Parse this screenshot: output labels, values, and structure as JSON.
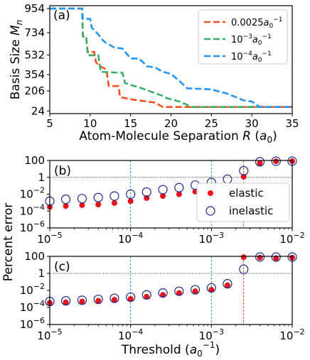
{
  "chart_data": [
    {
      "panel": "(a)",
      "type": "line",
      "xlabel_html": "Atom-Molecule Separation R (a0)",
      "xlabel": {
        "prefix": "Atom-Molecule Separation ",
        "var": "R",
        "unit_open": " (",
        "unit": "a",
        "unit_sub": "0",
        "unit_close": ")"
      },
      "ylabel": {
        "prefix": "Basis Size ",
        "var": "M",
        "sub": "n"
      },
      "xlim": [
        5,
        35
      ],
      "xticks": [
        5,
        10,
        15,
        20,
        25,
        30,
        35
      ],
      "yticks": [
        24,
        206,
        354,
        532,
        734,
        954
      ],
      "ylim": [
        0,
        980
      ],
      "legend_position": "top-right",
      "series": [
        {
          "name": "0.0025a0^-1",
          "label": {
            "main": "0.0025",
            "a": "a",
            "sub": "0",
            "sup": "−1"
          },
          "color": "#f4511e",
          "points": [
            [
              5,
              954
            ],
            [
              9,
              954
            ],
            [
              9.1,
              700
            ],
            [
              9.5,
              700
            ],
            [
              9.7,
              560
            ],
            [
              10.5,
              560
            ],
            [
              10.7,
              470
            ],
            [
              11,
              440
            ],
            [
              11.5,
              420
            ],
            [
              12,
              400
            ],
            [
              12.3,
              250
            ],
            [
              13.5,
              250
            ],
            [
              13.7,
              150
            ],
            [
              15,
              130
            ],
            [
              16,
              120
            ],
            [
              17,
              110
            ],
            [
              18,
              100
            ],
            [
              18.5,
              80
            ],
            [
              19,
              60
            ],
            [
              35,
              60
            ]
          ]
        },
        {
          "name": "10^-3 a0^-1",
          "label": {
            "main": "10",
            "main_sup": "−3",
            "a": "a",
            "sub": "0",
            "sup": "−1"
          },
          "color": "#3aaf6a",
          "points": [
            [
              5,
              954
            ],
            [
              9,
              954
            ],
            [
              9.1,
              700
            ],
            [
              9.5,
              700
            ],
            [
              9.7,
              530
            ],
            [
              11,
              530
            ],
            [
              11.3,
              380
            ],
            [
              14,
              370
            ],
            [
              14.3,
              280
            ],
            [
              15,
              260
            ],
            [
              16,
              240
            ],
            [
              17.5,
              200
            ],
            [
              19,
              160
            ],
            [
              19.5,
              140
            ],
            [
              21,
              110
            ],
            [
              22,
              80
            ],
            [
              22.5,
              60
            ],
            [
              35,
              60
            ]
          ]
        },
        {
          "name": "10^-4 a0^-1",
          "label": {
            "main": "10",
            "main_sup": "−4",
            "a": "a",
            "sub": "0",
            "sup": "−1"
          },
          "color": "#2196f3",
          "points": [
            [
              5,
              954
            ],
            [
              9,
              954
            ],
            [
              9.1,
              860
            ],
            [
              10,
              860
            ],
            [
              10.2,
              780
            ],
            [
              11,
              720
            ],
            [
              11.5,
              670
            ],
            [
              12,
              640
            ],
            [
              13,
              600
            ],
            [
              14,
              590
            ],
            [
              15,
              500
            ],
            [
              16,
              500
            ],
            [
              16.5,
              470
            ],
            [
              17,
              430
            ],
            [
              18,
              420
            ],
            [
              19,
              380
            ],
            [
              20,
              360
            ],
            [
              21,
              300
            ],
            [
              22,
              230
            ],
            [
              25,
              220
            ],
            [
              26,
              200
            ],
            [
              27,
              180
            ],
            [
              28,
              150
            ],
            [
              29,
              120
            ],
            [
              30,
              110
            ],
            [
              31,
              60
            ],
            [
              35,
              60
            ]
          ]
        }
      ]
    },
    {
      "panel": "(b)",
      "type": "scatter",
      "xscale": "log",
      "yscale": "log",
      "xlim": [
        1e-05,
        0.01
      ],
      "ylim": [
        1e-06,
        100
      ],
      "xtick_labels": [
        {
          "value": 1e-05,
          "base": "10",
          "exp": "−5"
        },
        {
          "value": 0.0001,
          "base": "10",
          "exp": "−4"
        },
        {
          "value": 0.001,
          "base": "10",
          "exp": "−3"
        },
        {
          "value": 0.01,
          "base": "10",
          "exp": "−2"
        }
      ],
      "ytick_labels": [
        {
          "value": 100,
          "text": "100"
        },
        {
          "value": 1,
          "text": "1"
        },
        {
          "value": 0.01,
          "base": "10",
          "exp": "−2"
        },
        {
          "value": 0.0001,
          "base": "10",
          "exp": "−4"
        },
        {
          "value": 1e-06,
          "base": "10",
          "exp": "−6"
        }
      ],
      "hline": 1,
      "vlines": [
        {
          "x": 0.0001,
          "color": "#2196f3"
        },
        {
          "x": 0.001,
          "color": "#3aaf6a"
        },
        {
          "x": 0.0025,
          "color": "#f4511e"
        }
      ],
      "legend_position": "center-right",
      "series": [
        {
          "name": "elastic",
          "marker": "filled",
          "color": "#e8101a",
          "x": [
            1e-05,
            1.58e-05,
            2.51e-05,
            3.98e-05,
            6.31e-05,
            0.0001,
            0.000158,
            0.000251,
            0.000398,
            0.000631,
            0.001,
            0.00158,
            0.00251,
            0.00398,
            0.00631,
            0.01
          ],
          "y": [
            0.0003,
            0.0004,
            0.0005,
            0.0006,
            0.0009,
            0.0015,
            0.0035,
            0.006,
            0.01,
            0.02,
            0.04,
            0.1,
            1.2,
            50,
            80,
            100
          ]
        },
        {
          "name": "inelastic",
          "marker": "open",
          "color": "#1f2a8c",
          "x": [
            1e-05,
            1.58e-05,
            2.51e-05,
            3.98e-05,
            6.31e-05,
            0.0001,
            0.000158,
            0.000251,
            0.000398,
            0.000631,
            0.001,
            0.00158,
            0.00251,
            0.00398,
            0.00631,
            0.01
          ],
          "y": [
            0.0015,
            0.0025,
            0.003,
            0.004,
            0.006,
            0.01,
            0.018,
            0.035,
            0.06,
            0.12,
            0.25,
            0.6,
            6,
            70,
            100,
            100
          ]
        }
      ]
    },
    {
      "panel": "(c)",
      "type": "scatter",
      "xscale": "log",
      "yscale": "log",
      "xlim": [
        1e-05,
        0.01
      ],
      "ylim": [
        1e-06,
        100
      ],
      "xlabel": {
        "prefix": "Threshold (",
        "unit": "a",
        "unit_sub": "0",
        "unit_sup": "−1",
        "suffix": ")"
      },
      "shared_ylabel": "Percent error",
      "xtick_labels": [
        {
          "value": 1e-05,
          "base": "10",
          "exp": "−5"
        },
        {
          "value": 0.0001,
          "base": "10",
          "exp": "−4"
        },
        {
          "value": 0.001,
          "base": "10",
          "exp": "−3"
        },
        {
          "value": 0.01,
          "base": "10",
          "exp": "−2"
        }
      ],
      "ytick_labels": [
        {
          "value": 100,
          "text": "100"
        },
        {
          "value": 1,
          "text": "1"
        },
        {
          "value": 0.01,
          "base": "10",
          "exp": "−2"
        },
        {
          "value": 0.0001,
          "base": "10",
          "exp": "−4"
        },
        {
          "value": 1e-06,
          "base": "10",
          "exp": "−6"
        }
      ],
      "hline": 1,
      "vlines": [
        {
          "x": 0.0001,
          "color": "#2196f3"
        },
        {
          "x": 0.001,
          "color": "#3aaf6a"
        },
        {
          "x": 0.0025,
          "color": "#f4511e"
        }
      ],
      "series": [
        {
          "name": "elastic",
          "marker": "filled",
          "color": "#e8101a",
          "x": [
            1e-05,
            1.58e-05,
            2.51e-05,
            3.98e-05,
            6.31e-05,
            0.0001,
            0.000158,
            0.000251,
            0.000398,
            0.000631,
            0.001,
            0.00158,
            0.00251,
            0.00398,
            0.00631,
            0.01
          ],
          "y": [
            0.00035,
            0.0004,
            0.0005,
            0.0006,
            0.0008,
            0.001,
            0.0018,
            0.003,
            0.005,
            0.008,
            0.012,
            0.04,
            80,
            70,
            60,
            70
          ]
        },
        {
          "name": "inelastic",
          "marker": "open",
          "color": "#1f2a8c",
          "x": [
            1e-05,
            1.58e-05,
            2.51e-05,
            3.98e-05,
            6.31e-05,
            0.0001,
            0.000158,
            0.000251,
            0.000398,
            0.000631,
            0.001,
            0.00158,
            0.00251,
            0.00398,
            0.00631,
            0.01
          ],
          "y": [
            0.0005,
            0.0006,
            0.0007,
            0.0009,
            0.0012,
            0.0016,
            0.003,
            0.005,
            0.008,
            0.012,
            0.02,
            0.06,
            3,
            100,
            100,
            100
          ]
        }
      ]
    }
  ]
}
